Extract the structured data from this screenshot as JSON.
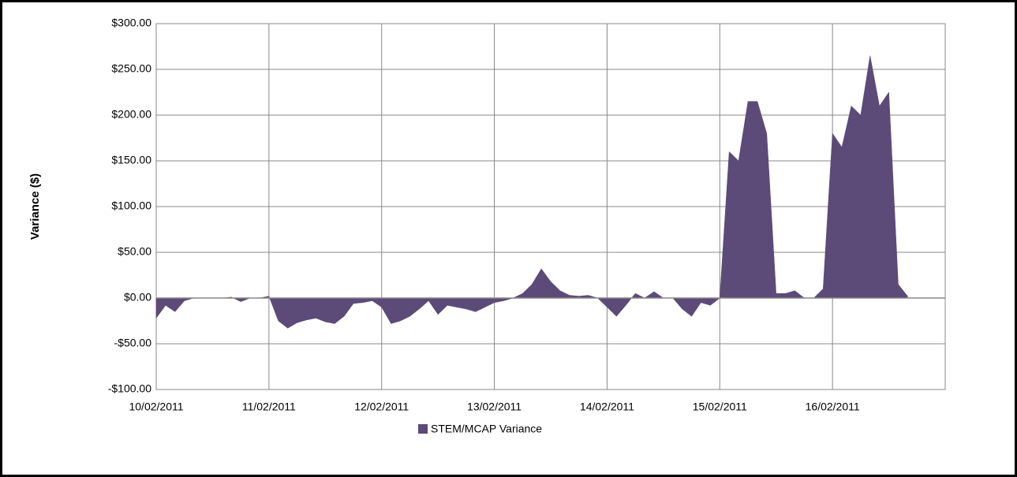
{
  "chart_data": {
    "type": "area",
    "y_label": "Variance ($)",
    "categories": [
      "10/02/2011",
      null,
      null,
      null,
      null,
      null,
      null,
      null,
      null,
      null,
      null,
      null,
      "11/02/2011",
      null,
      null,
      null,
      null,
      null,
      null,
      null,
      null,
      null,
      null,
      null,
      "12/02/2011",
      null,
      null,
      null,
      null,
      null,
      null,
      null,
      null,
      null,
      null,
      null,
      "13/02/2011",
      null,
      null,
      null,
      null,
      null,
      null,
      null,
      null,
      null,
      null,
      null,
      "14/02/2011",
      null,
      null,
      null,
      null,
      null,
      null,
      null,
      null,
      null,
      null,
      null,
      "15/02/2011",
      null,
      null,
      null,
      null,
      null,
      null,
      null,
      null,
      null,
      null,
      null,
      "16/02/2011",
      null,
      null,
      null,
      null,
      null,
      null,
      null,
      null,
      null,
      null,
      null
    ],
    "series": [
      {
        "name": "STEM/MCAP Variance",
        "color": "#5c4a78",
        "values": [
          -22,
          -8,
          -15,
          -3,
          0,
          0,
          0,
          0,
          1,
          -4,
          0,
          0,
          2,
          -25,
          -33,
          -27,
          -24,
          -22,
          -26,
          -28,
          -20,
          -6,
          -5,
          -3,
          -10,
          -28,
          -25,
          -20,
          -12,
          -3,
          -18,
          -8,
          -10,
          -12,
          -15,
          -10,
          -5,
          -3,
          0,
          5,
          15,
          32,
          18,
          8,
          3,
          2,
          3,
          0,
          -10,
          -20,
          -8,
          5,
          0,
          7,
          0,
          0,
          -12,
          -20,
          -5,
          -8,
          0,
          160,
          150,
          215,
          215,
          180,
          5,
          5,
          8,
          0,
          0,
          10,
          180,
          165,
          210,
          200,
          265,
          210,
          225,
          15,
          2,
          null,
          null,
          null
        ]
      }
    ],
    "ylim": [
      -100,
      300
    ],
    "yticks": [
      {
        "value": -100,
        "label": "-$100.00"
      },
      {
        "value": -50,
        "label": "-$50.00"
      },
      {
        "value": 0,
        "label": "$0.00"
      },
      {
        "value": 50,
        "label": "$50.00"
      },
      {
        "value": 100,
        "label": "$100.00"
      },
      {
        "value": 150,
        "label": "$150.00"
      },
      {
        "value": 200,
        "label": "$200.00"
      },
      {
        "value": 250,
        "label": "$250.00"
      },
      {
        "value": 300,
        "label": "$300.00"
      }
    ],
    "grid": true,
    "legend": "bottom"
  }
}
